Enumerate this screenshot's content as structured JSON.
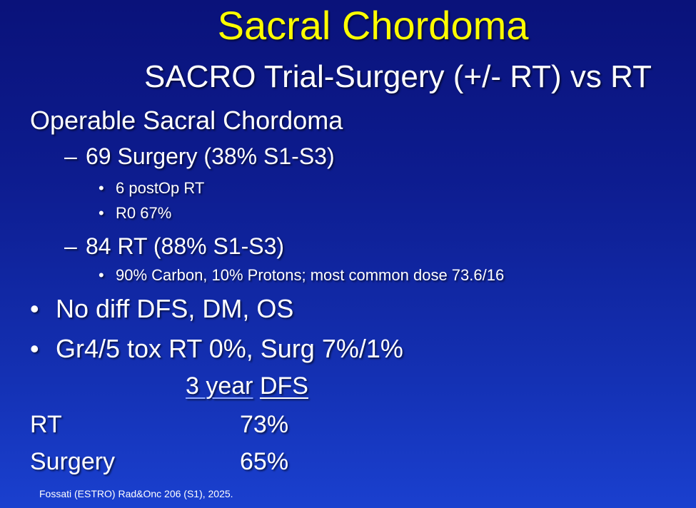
{
  "title": "Sacral Chordoma",
  "subtitle": "SACRO Trial-Surgery (+/- RT) vs RT",
  "heading": "Operable Sacral Chordoma",
  "surgery": {
    "text": "69 Surgery (38% S1-S3)",
    "subitems": [
      "6 postOp RT",
      "R0 67%"
    ]
  },
  "rt": {
    "text": "84 RT (88% S1-S3)",
    "subitems": [
      "90% Carbon, 10% Protons; most common dose 73.6/16"
    ]
  },
  "bullets": [
    "No diff DFS, DM, OS",
    "Gr4/5 tox RT 0%, Surg 7%/1%"
  ],
  "table": {
    "header_part1": "3 year",
    "header_part2": "DFS",
    "rows": [
      {
        "label": "RT",
        "value": "73%"
      },
      {
        "label": "Surgery",
        "value": "65%"
      }
    ]
  },
  "citation": "Fossati (ESTRO) Rad&Onc 206 (S1), 2025.",
  "colors": {
    "title": "#ffff00",
    "text": "#ffffff",
    "background_top": "#0a127a",
    "background_bottom": "#1a40cf"
  }
}
